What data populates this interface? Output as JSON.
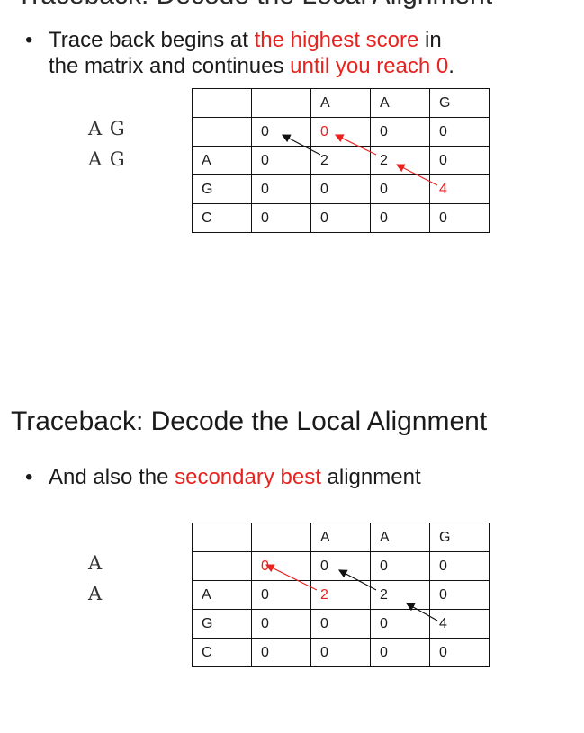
{
  "top_slide": {
    "title": "Traceback: Decode the Local Alignment",
    "bullet": {
      "symbol": "•",
      "line1": {
        "a": "Trace back begins at ",
        "b": "the highest score",
        "c": " in"
      },
      "line2": {
        "a": "the matrix and continues ",
        "b": "until you reach 0",
        "c": "."
      }
    },
    "alignment": [
      "A G",
      "A G"
    ],
    "matrix": [
      [
        "",
        "",
        "A",
        "A",
        "G"
      ],
      [
        "",
        "0",
        "0",
        "0",
        "0"
      ],
      [
        "A",
        "0",
        "2",
        "2",
        "0"
      ],
      [
        "G",
        "0",
        "0",
        "0",
        "4"
      ],
      [
        "C",
        "0",
        "0",
        "0",
        "0"
      ]
    ]
  },
  "bottom_slide": {
    "title": "Traceback: Decode the Local Alignment",
    "bullet": {
      "symbol": "•",
      "a": "And also the ",
      "b": "secondary best",
      "c": " alignment"
    },
    "alignment": [
      "A",
      "A"
    ],
    "matrix": [
      [
        "",
        "",
        "A",
        "A",
        "G"
      ],
      [
        "",
        "0",
        "0",
        "0",
        "0"
      ],
      [
        "A",
        "0",
        "2",
        "2",
        "0"
      ],
      [
        "G",
        "0",
        "0",
        "0",
        "4"
      ],
      [
        "C",
        "0",
        "0",
        "0",
        "0"
      ]
    ]
  },
  "colors": {
    "highlight": "#e8231f",
    "text": "#1a1a1a",
    "grid": "#111111"
  }
}
